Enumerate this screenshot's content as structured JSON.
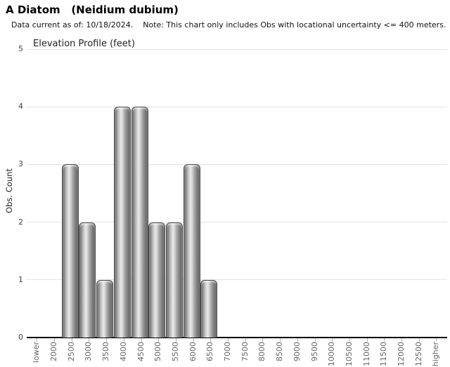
{
  "header": {
    "title": "A Diatom   (Neidium dubium)",
    "subtitle": "Data current as of: 10/18/2024.    Note: This chart only includes Obs with locational uncertainty <= 400 meters."
  },
  "chart_data": {
    "type": "bar",
    "title": "Elevation Profile (feet)",
    "xlabel": "",
    "ylabel": "Obs. Count",
    "ylim": [
      0,
      5
    ],
    "yticks": [
      0,
      1,
      2,
      3,
      4,
      5
    ],
    "grid": "horizontal",
    "legend": "none",
    "categories": [
      "lower",
      "2000",
      "2500",
      "3000",
      "3500",
      "4000",
      "4500",
      "5000",
      "5500",
      "6000",
      "6500",
      "7000",
      "7500",
      "8000",
      "8500",
      "9000",
      "9500",
      "10000",
      "10500",
      "11000",
      "11500",
      "12000",
      "12500",
      "higher"
    ],
    "values": [
      0,
      0,
      3,
      2,
      1,
      4,
      4,
      2,
      2,
      3,
      1,
      0,
      0,
      0,
      0,
      0,
      0,
      0,
      0,
      0,
      0,
      0,
      0,
      0
    ]
  },
  "colors": {
    "background": "#ffffff",
    "gridline": "#e4e4e4",
    "axis_line": "#000000",
    "tick_mark": "#b4b4b4",
    "x_label": "#666666",
    "y_label": "#444444",
    "bar_border": "#4a4a4a",
    "bar_gradient": [
      "#5e5e5e 0%",
      "#757575 6%",
      "#b5b5b5 22%",
      "#e8e8e8 40%",
      "#d8d8d8 50%",
      "#a0a0a0 68%",
      "#757575 88%",
      "#595959 100%"
    ]
  }
}
